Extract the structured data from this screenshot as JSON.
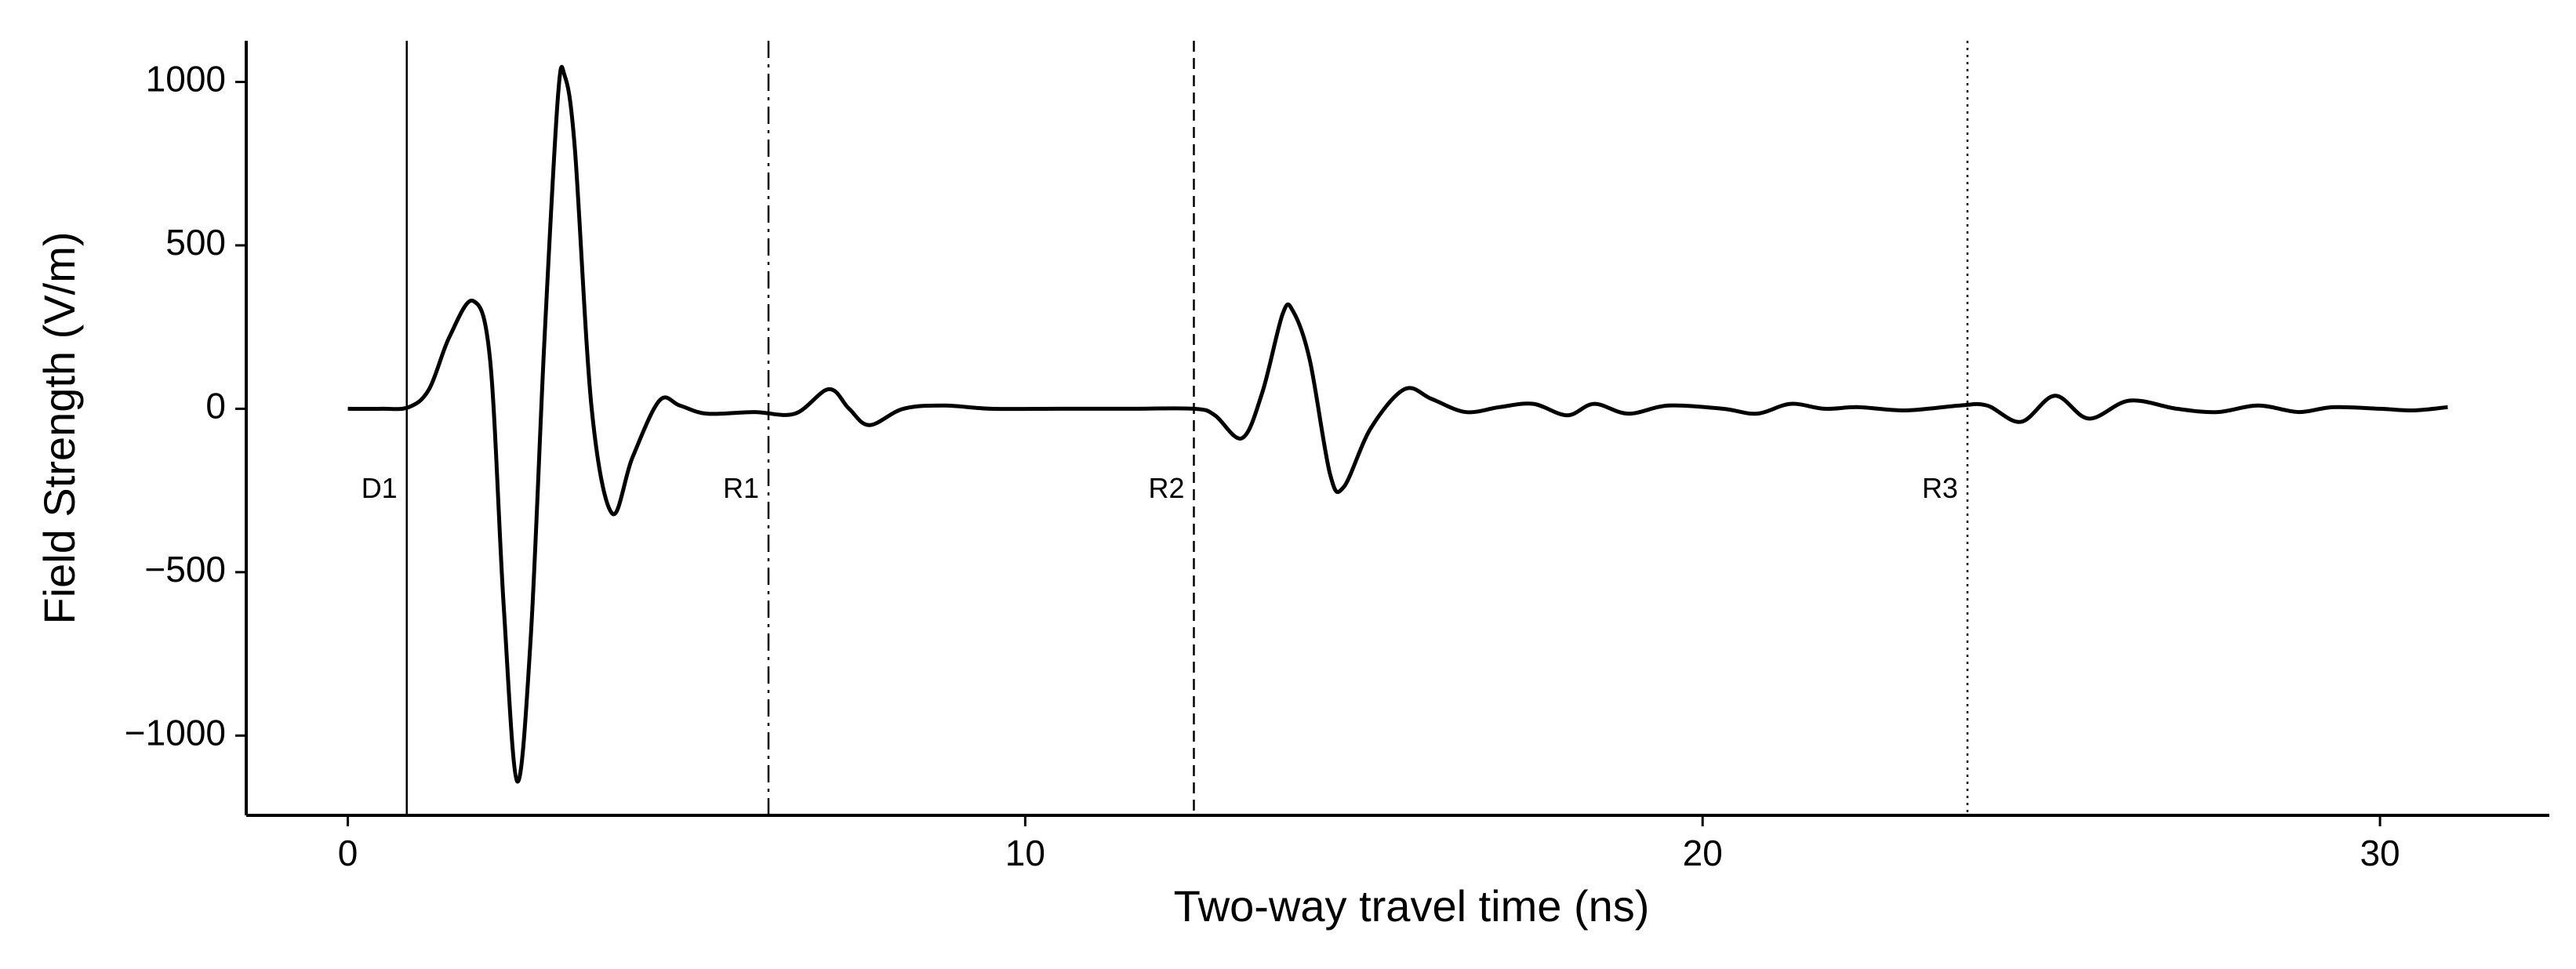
{
  "chart_data": {
    "type": "line",
    "x_label": "Two-way travel time (ns)",
    "y_label": "Field Strength (V/m)",
    "xlim": [
      -1.5,
      32.5
    ],
    "xticks": [
      0,
      10,
      20,
      30
    ],
    "ylim": [
      -1244,
      1126
    ],
    "yticks": [
      {
        "value": -1000,
        "label": "−1000"
      },
      {
        "value": -500,
        "label": "−500"
      },
      0,
      500,
      1000
    ],
    "grid": false,
    "series": [
      {
        "color": "#000000",
        "x": [
          0,
          0.5,
          0.9,
          1.2,
          1.5,
          1.85,
          2.1,
          2.3,
          2.5,
          2.7,
          2.9,
          3.1,
          3.2,
          3.35,
          3.6,
          3.9,
          4.2,
          4.6,
          4.9,
          5.3,
          6.0,
          6.6,
          7.1,
          7.4,
          7.7,
          8.2,
          8.8,
          9.5,
          10.5,
          11.5,
          12.5,
          12.8,
          13.2,
          13.5,
          13.8,
          13.95,
          14.2,
          14.5,
          14.7,
          15.1,
          15.6,
          16,
          16.5,
          17,
          17.5,
          18,
          18.4,
          18.9,
          19.5,
          20.3,
          20.8,
          21.3,
          21.8,
          22.3,
          23,
          23.8,
          24.2,
          24.7,
          25.2,
          25.7,
          26.3,
          27,
          27.6,
          28.2,
          28.8,
          29.3,
          30,
          30.5,
          31
        ],
        "values": [
          0,
          0,
          5,
          60,
          220,
          330,
          150,
          -600,
          -1140,
          -700,
          200,
          950,
          1020,
          800,
          0,
          -320,
          -150,
          25,
          10,
          -15,
          -10,
          -15,
          60,
          0,
          -50,
          0,
          10,
          0,
          0,
          0,
          0,
          -20,
          -90,
          50,
          290,
          300,
          150,
          -200,
          -240,
          -60,
          60,
          30,
          -10,
          5,
          15,
          -20,
          15,
          -15,
          10,
          0,
          -15,
          15,
          0,
          5,
          -5,
          10,
          10,
          -40,
          40,
          -30,
          25,
          0,
          -10,
          10,
          -10,
          5,
          0,
          -5,
          5
        ]
      }
    ],
    "markers": [
      {
        "label": "D1",
        "x": 0.87,
        "linestyle": "solid"
      },
      {
        "label": "R1",
        "x": 6.21,
        "linestyle": "dashdot"
      },
      {
        "label": "R2",
        "x": 12.49,
        "linestyle": "dashed"
      },
      {
        "label": "R3",
        "x": 23.91,
        "linestyle": "dotted"
      }
    ],
    "marker_label_y": -250
  }
}
